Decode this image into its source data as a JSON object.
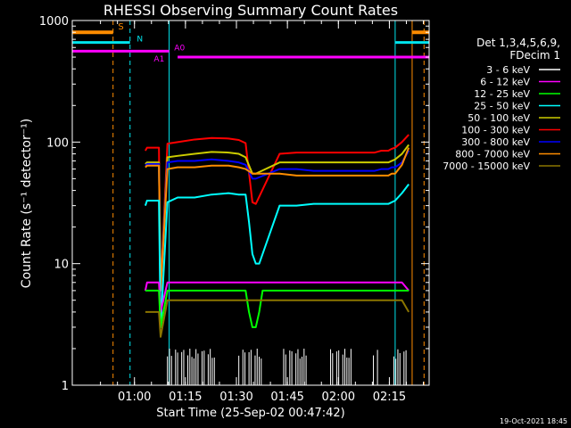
{
  "chart_data": {
    "type": "line",
    "title": "RHESSI Observing Summary Count Rates",
    "xlabel": "Start Time (25-Sep-02 00:47:42)",
    "ylabel": "Count Rate (s⁻¹ detector⁻¹)",
    "yscale": "log",
    "ylim": [
      1,
      1000
    ],
    "xlim_minutes": [
      -6,
      99
    ],
    "x_ticks": [
      "01:00",
      "01:15",
      "01:30",
      "01:45",
      "02:00",
      "02:15"
    ],
    "y_ticks": [
      "1",
      "10",
      "100",
      "1000"
    ],
    "legend_header": [
      "Det 1,3,4,5,6,9,",
      "FDecim 1"
    ],
    "legend_position": "right",
    "footer_date": "19-Oct-2021 18:45",
    "colors": {
      "background": "#000000",
      "axes": "#ffffff",
      "saa": "#ff8c00",
      "night": "#00e5ee",
      "attenuator": "#ff00ff"
    },
    "bands": [
      {
        "name": "3 - 6 keV",
        "color": "#ffffff"
      },
      {
        "name": "6 - 12 keV",
        "color": "#ff00ff"
      },
      {
        "name": "12 - 25 keV",
        "color": "#00ff00"
      },
      {
        "name": "25 - 50 keV",
        "color": "#00ffff"
      },
      {
        "name": "50 - 100 keV",
        "color": "#cccc00"
      },
      {
        "name": "100 - 300 keV",
        "color": "#ff0000"
      },
      {
        "name": "300 - 800 keV",
        "color": "#0000ff"
      },
      {
        "name": "800 - 7000 keV",
        "color": "#ff8c00"
      },
      {
        "name": "7000 - 15000 keV",
        "color": "#8b7500"
      }
    ],
    "flag_labels": {
      "saa": "S",
      "night": "N",
      "att_a0": "A0",
      "att_a1": "A1"
    },
    "flag_lines": {
      "saa": {
        "segments": [
          [
            -6,
            6
          ],
          [
            94,
            99
          ]
        ],
        "level": 800
      },
      "night": {
        "segments": [
          [
            -6,
            11
          ],
          [
            89,
            99
          ]
        ],
        "level": 660
      },
      "attenuator_a0": {
        "segments": [
          [
            -6,
            22.5
          ]
        ],
        "level": 560
      },
      "attenuator_a1": {
        "segments": [
          [
            25,
            99
          ]
        ],
        "level": 500
      }
    },
    "vertical_markers": [
      {
        "x": -6,
        "color": "#00e5ee",
        "dashed": false
      },
      {
        "x": 6,
        "color": "#ff8c00",
        "dashed": true
      },
      {
        "x": 11,
        "color": "#00e5ee",
        "dashed": true
      },
      {
        "x": 22.5,
        "color": "#00e5ee",
        "dashed": false
      },
      {
        "x": 89,
        "color": "#00e5ee",
        "dashed": false
      },
      {
        "x": 94,
        "color": "#ff8c00",
        "dashed": false
      },
      {
        "x": 97.5,
        "color": "#ff8c00",
        "dashed": true
      }
    ],
    "series": [
      {
        "band": 5,
        "x": [
          15.5,
          16,
          19.5,
          20,
          22,
          25,
          30,
          35,
          40,
          43,
          45,
          47,
          48,
          55,
          60,
          65,
          70,
          75,
          80,
          83,
          85,
          87,
          88,
          89,
          91,
          93
        ],
        "values": [
          85,
          90,
          90,
          6,
          97,
          100,
          105,
          108,
          107,
          104,
          98,
          32,
          31,
          80,
          82,
          82,
          82,
          82,
          82,
          82,
          85,
          85,
          88,
          90,
          100,
          115
        ]
      },
      {
        "band": 4,
        "x": [
          15.5,
          16,
          19.5,
          20,
          22,
          25,
          30,
          35,
          40,
          43,
          45,
          47,
          48,
          55,
          60,
          65,
          70,
          75,
          80,
          83,
          85,
          87,
          88,
          89,
          91,
          93
        ],
        "values": [
          66,
          68,
          68,
          6,
          75,
          77,
          80,
          83,
          82,
          80,
          75,
          55,
          55,
          68,
          68,
          68,
          68,
          68,
          68,
          68,
          68,
          68,
          70,
          72,
          80,
          95
        ]
      },
      {
        "band": 6,
        "x": [
          15.5,
          16,
          19.5,
          20,
          22,
          25,
          30,
          35,
          40,
          43,
          45,
          47,
          48,
          55,
          60,
          65,
          70,
          75,
          80,
          83,
          85,
          87,
          88,
          89,
          91,
          93
        ],
        "values": [
          64,
          66,
          66,
          6,
          68,
          70,
          70,
          72,
          70,
          68,
          65,
          50,
          50,
          60,
          60,
          58,
          58,
          58,
          58,
          58,
          60,
          60,
          62,
          62,
          68,
          85
        ]
      },
      {
        "band": 7,
        "x": [
          15.5,
          16,
          19.5,
          20,
          22,
          25,
          30,
          35,
          40,
          43,
          45,
          47,
          48,
          55,
          60,
          65,
          70,
          75,
          80,
          83,
          85,
          87,
          88,
          89,
          91,
          93
        ],
        "values": [
          62,
          64,
          64,
          6,
          60,
          62,
          62,
          64,
          64,
          62,
          60,
          55,
          55,
          55,
          53,
          53,
          53,
          53,
          53,
          53,
          53,
          53,
          55,
          55,
          65,
          90
        ]
      },
      {
        "band": 3,
        "x": [
          15.5,
          16,
          19.5,
          20,
          22,
          25,
          30,
          35,
          40,
          43,
          45,
          46,
          47,
          48,
          49,
          55,
          60,
          65,
          70,
          75,
          80,
          83,
          85,
          87,
          88,
          89,
          91,
          93
        ],
        "values": [
          30,
          33,
          33,
          3,
          32,
          35,
          35,
          37,
          38,
          37,
          37,
          22,
          12,
          10,
          10,
          30,
          30,
          31,
          31,
          31,
          31,
          31,
          31,
          31,
          32,
          33,
          38,
          45
        ]
      },
      {
        "band": 1,
        "x": [
          15.5,
          16,
          19.5,
          20,
          22,
          30,
          40,
          45,
          46,
          50,
          60,
          70,
          80,
          88,
          89,
          91,
          93
        ],
        "values": [
          6,
          7,
          7,
          4,
          7,
          7,
          7,
          7,
          7,
          7,
          7,
          7,
          7,
          7,
          7,
          7,
          6
        ]
      },
      {
        "band": 2,
        "x": [
          15.5,
          16,
          19.5,
          20,
          22,
          30,
          40,
          45,
          46,
          47,
          48,
          49,
          50,
          60,
          70,
          80,
          88,
          89,
          91,
          93
        ],
        "values": [
          6,
          6,
          6,
          3,
          6,
          6,
          6,
          6,
          4,
          3,
          3,
          4,
          6,
          6,
          6,
          6,
          6,
          6,
          6,
          6
        ]
      },
      {
        "band": 8,
        "x": [
          15.5,
          16,
          19.5,
          20,
          22,
          30,
          40,
          45,
          46,
          50,
          60,
          70,
          80,
          88,
          89,
          91,
          93
        ],
        "values": [
          4,
          4,
          4,
          2.5,
          5,
          5,
          5,
          5,
          5,
          5,
          5,
          5,
          5,
          5,
          5,
          5,
          4
        ]
      }
    ],
    "counting_noise": [
      {
        "band": 0,
        "x_range": [
          22,
          93
        ],
        "level": 1.6,
        "gaps": [
          [
            36,
            43
          ],
          [
            50,
            56
          ],
          [
            63,
            70
          ],
          [
            76,
            82
          ],
          [
            84,
            88
          ]
        ]
      }
    ]
  }
}
